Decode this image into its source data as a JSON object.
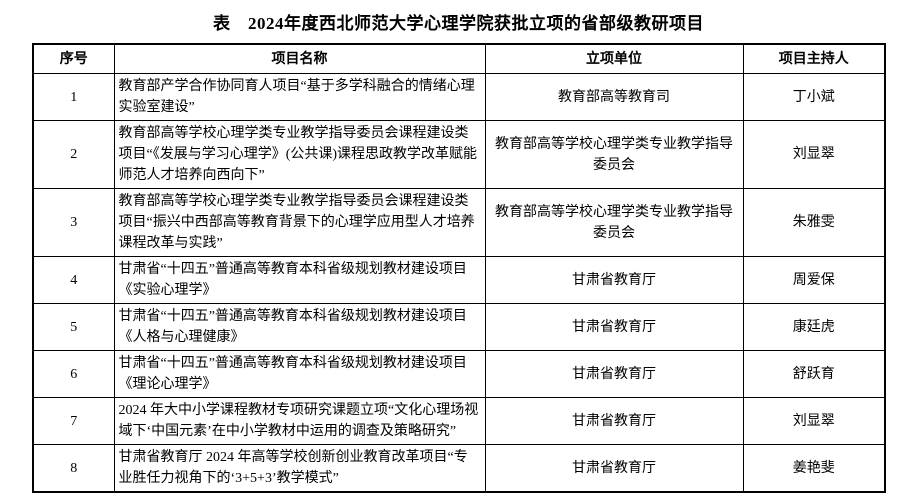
{
  "title": "表　2024年度西北师范大学心理学院获批立项的省部级教研项目",
  "table": {
    "columns": [
      "序号",
      "项目名称",
      "立项单位",
      "项目主持人"
    ],
    "rows": [
      {
        "no": "1",
        "project": "教育部产学合作协同育人项目“基于多学科融合的情绪心理实验室建设”",
        "unit": "教育部高等教育司",
        "leader": "丁小斌"
      },
      {
        "no": "2",
        "project": "教育部高等学校心理学类专业教学指导委员会课程建设类项目“《发展与学习心理学》(公共课)课程思政教学改革赋能师范人才培养向西向下”",
        "unit": "教育部高等学校心理学类专业教学指导委员会",
        "leader": "刘显翠"
      },
      {
        "no": "3",
        "project": "教育部高等学校心理学类专业教学指导委员会课程建设类项目“振兴中西部高等教育背景下的心理学应用型人才培养课程改革与实践”",
        "unit": "教育部高等学校心理学类专业教学指导委员会",
        "leader": "朱雅雯"
      },
      {
        "no": "4",
        "project": "甘肃省“十四五”普通高等教育本科省级规划教材建设项目《实验心理学》",
        "unit": "甘肃省教育厅",
        "leader": "周爱保"
      },
      {
        "no": "5",
        "project": "甘肃省“十四五”普通高等教育本科省级规划教材建设项目《人格与心理健康》",
        "unit": "甘肃省教育厅",
        "leader": "康廷虎"
      },
      {
        "no": "6",
        "project": "甘肃省“十四五”普通高等教育本科省级规划教材建设项目《理论心理学》",
        "unit": "甘肃省教育厅",
        "leader": "舒跃育"
      },
      {
        "no": "7",
        "project": "2024 年大中小学课程教材专项研究课题立项“文化心理场视域下‘中国元素’在中小学教材中运用的调查及策略研究”",
        "unit": "甘肃省教育厅",
        "leader": "刘显翠"
      },
      {
        "no": "8",
        "project": "甘肃省教育厅 2024 年高等学校创新创业教育改革项目“专业胜任力视角下的‘3+5+3’教学模式”",
        "unit": "甘肃省教育厅",
        "leader": "姜艳斐"
      }
    ]
  }
}
